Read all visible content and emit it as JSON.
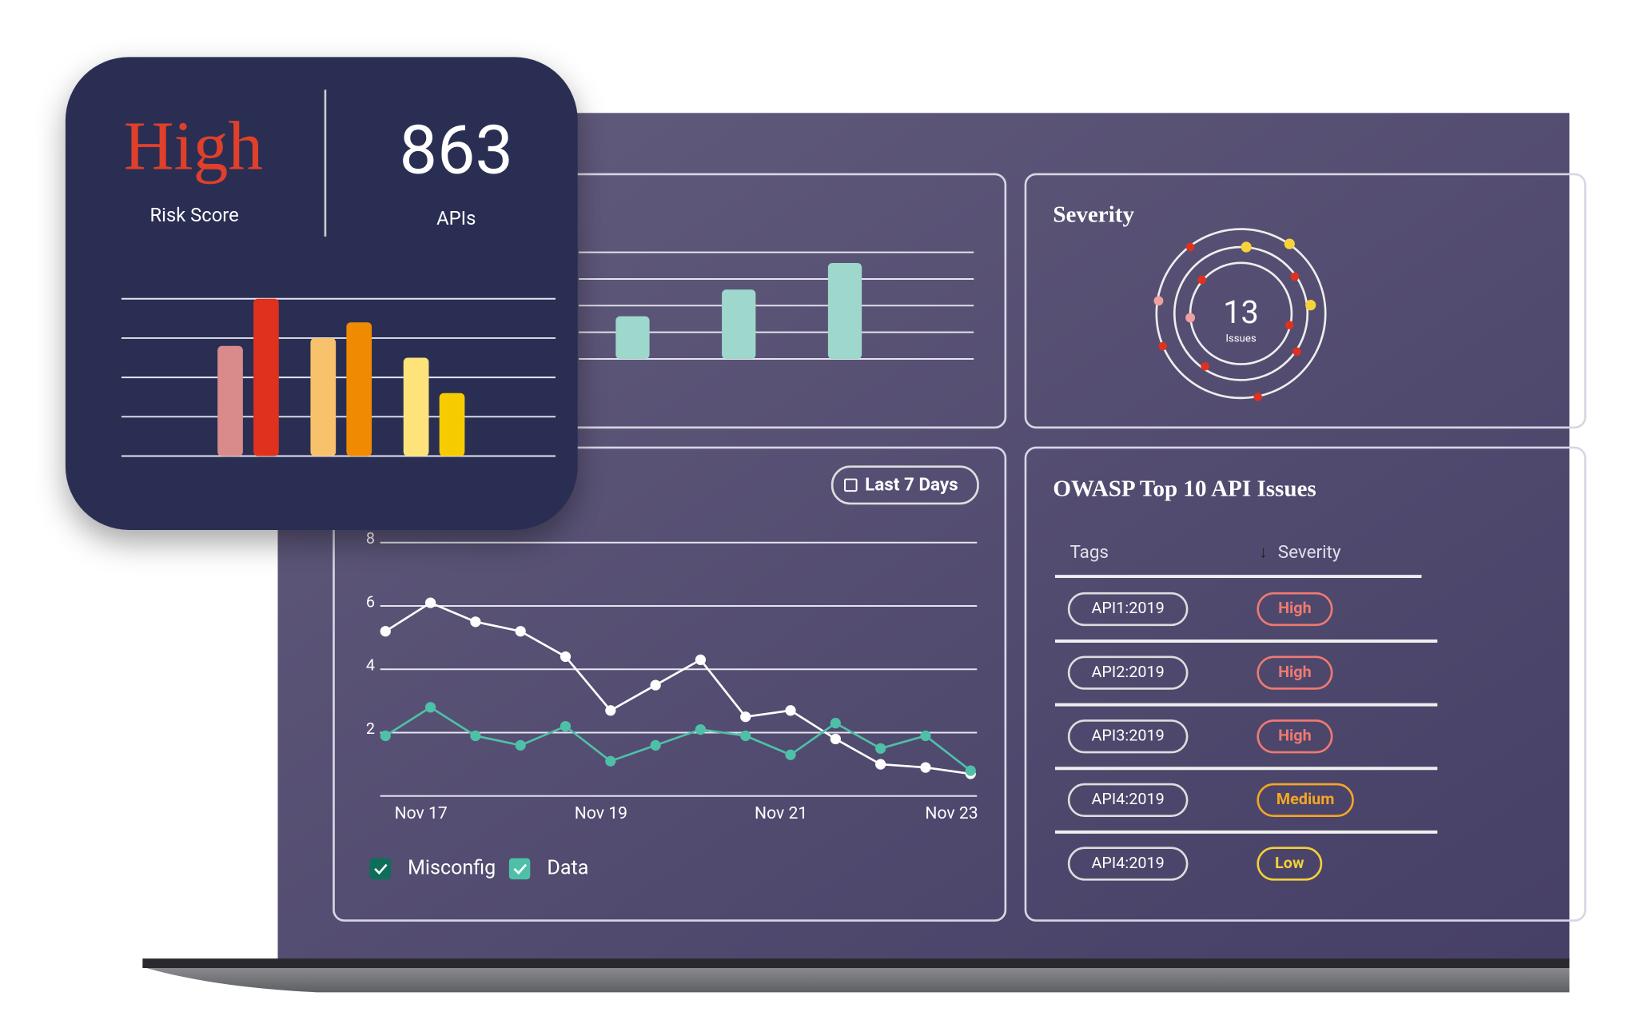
{
  "chart_data": [
    {
      "type": "bar",
      "values": [
        2.8,
        4.0,
        3.0,
        3.4,
        2.5,
        1.6
      ],
      "colors": [
        "#d98b8b",
        "#e0301e",
        "#f7c26b",
        "#f08a00",
        "#fde37a",
        "#f6cc00"
      ],
      "ylim": [
        0,
        4
      ],
      "yticks": [
        0,
        1,
        2,
        3,
        4
      ],
      "grid": true
    },
    {
      "type": "bar",
      "values": [
        1.6,
        2.6,
        3.6
      ],
      "color": "#9ed8cc",
      "ylim": [
        0,
        4
      ],
      "yticks": [
        0,
        1,
        2,
        3,
        4
      ],
      "grid": true
    },
    {
      "type": "line",
      "categories": [
        null,
        "Nov 17",
        null,
        null,
        null,
        "Nov 19",
        null,
        null,
        null,
        "Nov 21",
        null,
        null,
        null,
        "Nov 23"
      ],
      "series": [
        {
          "name": "Misconfig",
          "color": "#ffffff",
          "legend_color": "#0d6e5a",
          "values": [
            5.2,
            6.1,
            5.5,
            5.2,
            4.4,
            2.7,
            3.5,
            4.3,
            2.5,
            2.7,
            1.8,
            1.0,
            0.9,
            0.7
          ]
        },
        {
          "name": "Data",
          "color": "#4fc0a8",
          "legend_color": "#4fc0a8",
          "values": [
            1.9,
            2.8,
            1.9,
            1.6,
            2.2,
            1.1,
            1.6,
            2.1,
            1.9,
            1.3,
            2.3,
            1.5,
            1.9,
            0.8
          ]
        }
      ],
      "ylim": [
        0,
        8
      ],
      "yticks": [
        2,
        4,
        6,
        8
      ],
      "grid": true,
      "button": "Last 7 Days"
    }
  ],
  "risk_card": {
    "risk_score": "High",
    "risk_score_label": "Risk Score",
    "api_count": 863,
    "api_count_label": "APIs"
  },
  "severity": {
    "title": "Severity",
    "count": 13,
    "count_label": "Issues"
  },
  "owasp": {
    "title": "OWASP Top 10 API Issues",
    "headers": [
      "Tags",
      "Severity"
    ],
    "rows": [
      [
        "API1:2019",
        "High"
      ],
      [
        "API2:2019",
        "High"
      ],
      [
        "API3:2019",
        "High"
      ],
      [
        "API4:2019",
        "Medium"
      ],
      [
        "API4:2019",
        "Low"
      ]
    ],
    "severity_colors": {
      "High": "#f07a70",
      "Medium": "#f5a623",
      "Low": "#f2d13a"
    }
  }
}
